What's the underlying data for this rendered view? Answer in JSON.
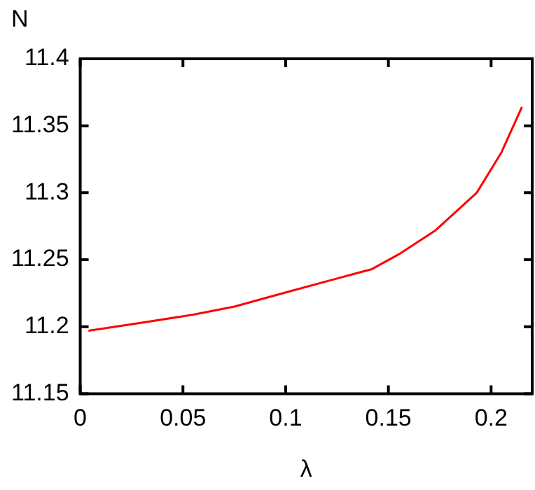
{
  "chart_data": {
    "type": "line",
    "xlabel": "λ",
    "ylabel": "N",
    "x": [
      0.004,
      0.03,
      0.055,
      0.075,
      0.101,
      0.125,
      0.142,
      0.155,
      0.173,
      0.193,
      0.205,
      0.215
    ],
    "series": [
      {
        "color": "#ff0000",
        "values": [
          11.197,
          11.203,
          11.209,
          11.215,
          11.226,
          11.236,
          11.243,
          11.254,
          11.272,
          11.3,
          11.33,
          11.364
        ]
      }
    ],
    "xlim": [
      0,
      0.22
    ],
    "xticks": [
      {
        "value": 0,
        "label": "0"
      },
      0.05,
      0.1,
      0.15,
      0.2
    ],
    "ylim": [
      11.15,
      11.4
    ],
    "yticks": [
      11.15,
      11.2,
      11.25,
      11.3,
      11.35,
      11.4
    ],
    "grid": false,
    "legend": false,
    "marker": "none",
    "line_style": "solid"
  }
}
